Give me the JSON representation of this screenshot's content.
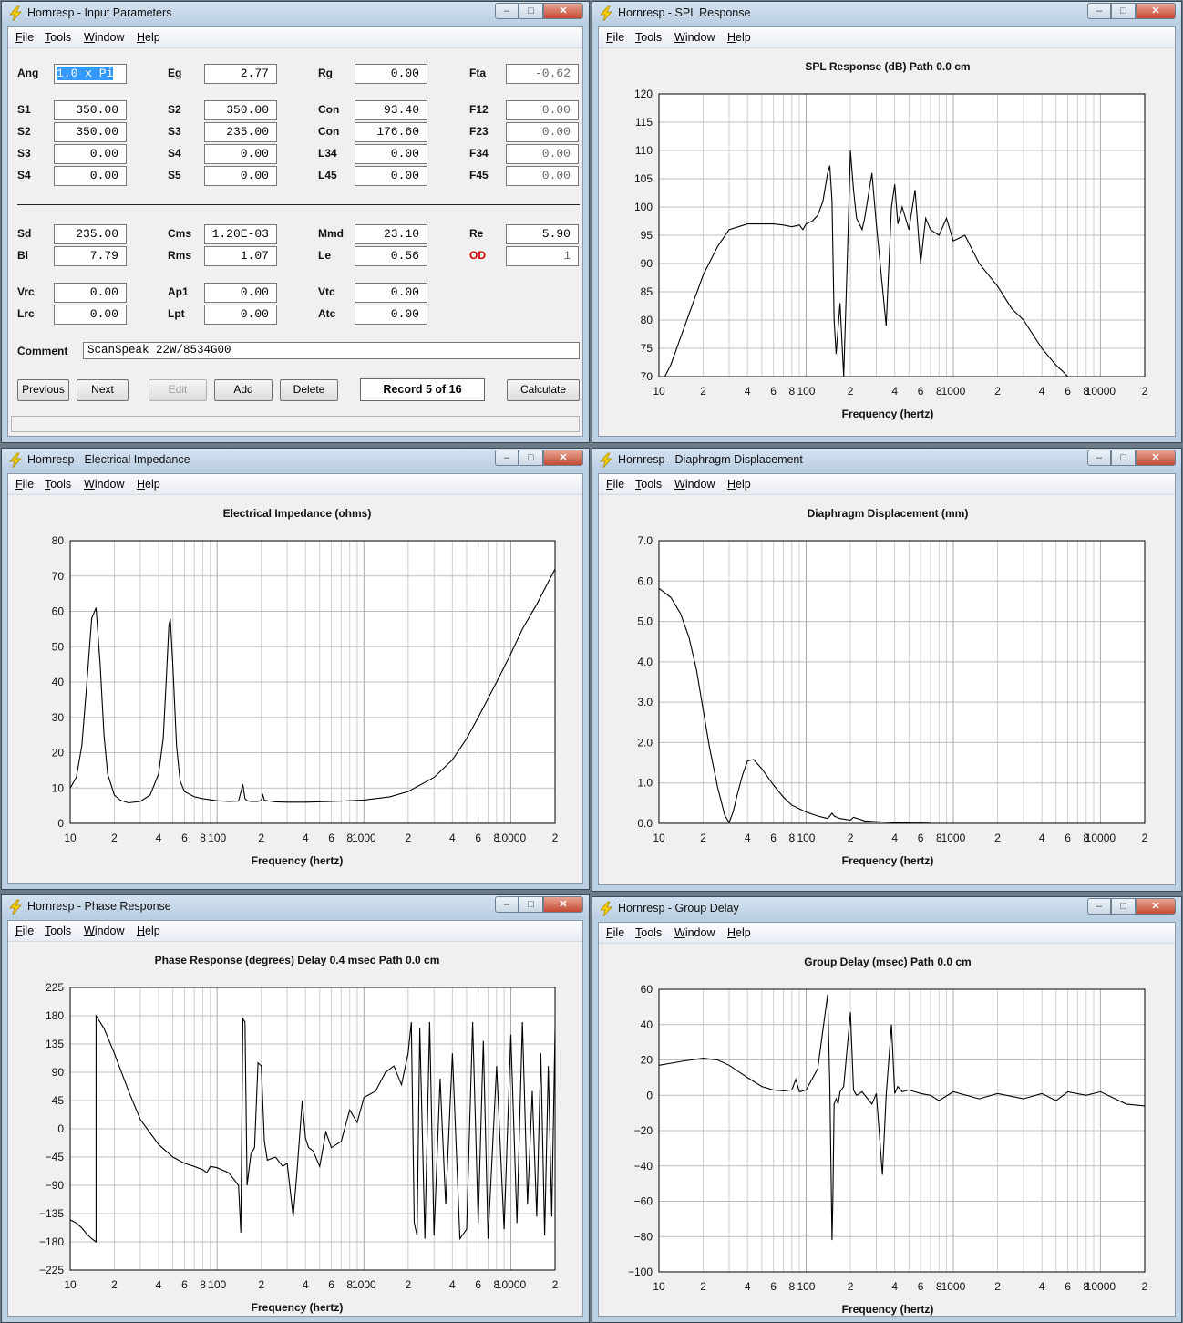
{
  "menu": [
    "File",
    "Tools",
    "Window",
    "Help"
  ],
  "window_controls": {
    "minimize": "–",
    "maximize": "□",
    "close": "✕"
  },
  "input_window": {
    "title": "Hornresp - Input Parameters",
    "rows": [
      [
        {
          "l": "Ang",
          "v": "1.0 x Pi",
          "sel": true
        },
        {
          "l": "Eg",
          "v": "2.77"
        },
        {
          "l": "Rg",
          "v": "0.00"
        },
        {
          "l": "Fta",
          "v": "-0.62",
          "ro": true
        }
      ],
      [
        {
          "l": "S1",
          "v": "350.00"
        },
        {
          "l": "S2",
          "v": "350.00"
        },
        {
          "l": "Con",
          "v": "93.40"
        },
        {
          "l": "F12",
          "v": "0.00",
          "ro": true
        }
      ],
      [
        {
          "l": "S2",
          "v": "350.00"
        },
        {
          "l": "S3",
          "v": "235.00"
        },
        {
          "l": "Con",
          "v": "176.60"
        },
        {
          "l": "F23",
          "v": "0.00",
          "ro": true
        }
      ],
      [
        {
          "l": "S3",
          "v": "0.00"
        },
        {
          "l": "S4",
          "v": "0.00"
        },
        {
          "l": "L34",
          "v": "0.00"
        },
        {
          "l": "F34",
          "v": "0.00",
          "ro": true
        }
      ],
      [
        {
          "l": "S4",
          "v": "0.00"
        },
        {
          "l": "S5",
          "v": "0.00"
        },
        {
          "l": "L45",
          "v": "0.00"
        },
        {
          "l": "F45",
          "v": "0.00",
          "ro": true
        }
      ],
      [
        {
          "l": "Sd",
          "v": "235.00"
        },
        {
          "l": "Cms",
          "v": "1.20E-03"
        },
        {
          "l": "Mmd",
          "v": "23.10"
        },
        {
          "l": "Re",
          "v": "5.90"
        }
      ],
      [
        {
          "l": "Bl",
          "v": "7.79"
        },
        {
          "l": "Rms",
          "v": "1.07"
        },
        {
          "l": "Le",
          "v": "0.56"
        },
        {
          "l": "OD",
          "v": "1",
          "ro": true,
          "red": true
        }
      ],
      [
        {
          "l": "Vrc",
          "v": "0.00"
        },
        {
          "l": "Ap1",
          "v": "0.00"
        },
        {
          "l": "Vtc",
          "v": "0.00"
        }
      ],
      [
        {
          "l": "Lrc",
          "v": "0.00"
        },
        {
          "l": "Lpt",
          "v": "0.00"
        },
        {
          "l": "Atc",
          "v": "0.00"
        }
      ]
    ],
    "comment_label": "Comment",
    "comment": "ScanSpeak 22W/8534G00",
    "buttons": {
      "previous": "Previous",
      "next": "Next",
      "edit": "Edit",
      "add": "Add",
      "delete": "Delete",
      "calculate": "Calculate"
    },
    "record": "Record 5 of 16"
  },
  "x_axis": {
    "label": "Frequency (hertz)",
    "range": [
      10,
      20000
    ],
    "ticks": [
      [
        10,
        "10"
      ],
      [
        20,
        "2"
      ],
      [
        40,
        "4"
      ],
      [
        60,
        "6"
      ],
      [
        80,
        "8"
      ],
      [
        100,
        "100"
      ],
      [
        200,
        "2"
      ],
      [
        400,
        "4"
      ],
      [
        600,
        "6"
      ],
      [
        800,
        "8"
      ],
      [
        1000,
        "1000"
      ],
      [
        2000,
        "2"
      ],
      [
        4000,
        "4"
      ],
      [
        6000,
        "6"
      ],
      [
        8000,
        "8"
      ],
      [
        10000,
        "10000"
      ],
      [
        20000,
        "2"
      ]
    ]
  },
  "chart_data": [
    {
      "id": "spl",
      "window_title": "Hornresp - SPL Response",
      "title": "SPL Response (dB)   Path 0.0 cm",
      "type": "line",
      "ylim": [
        70,
        120
      ],
      "yticks": [
        "70",
        "75",
        "80",
        "85",
        "90",
        "95",
        "100",
        "105",
        "110",
        "115",
        "120"
      ],
      "x": [
        10,
        12,
        15,
        20,
        25,
        30,
        40,
        50,
        60,
        70,
        80,
        90,
        95,
        100,
        110,
        120,
        130,
        140,
        145,
        150,
        155,
        160,
        170,
        180,
        190,
        200,
        210,
        220,
        230,
        240,
        250,
        280,
        300,
        350,
        380,
        400,
        420,
        450,
        500,
        550,
        600,
        650,
        700,
        800,
        900,
        1000,
        1200,
        1500,
        2000,
        2500,
        3000,
        4000,
        5000,
        5500,
        6000
      ],
      "y": [
        68,
        72,
        79,
        88,
        93,
        96,
        97,
        97,
        97,
        96.8,
        96.5,
        96.8,
        96,
        97,
        97.5,
        98.5,
        101,
        106,
        107.3,
        101,
        80,
        74,
        83,
        70,
        90,
        110,
        103,
        98,
        97,
        96,
        98,
        106,
        97,
        79,
        100,
        104,
        97,
        100,
        96,
        103,
        90,
        98,
        96,
        95,
        98,
        94,
        95,
        90,
        86,
        82,
        80,
        75,
        72,
        71,
        70
      ]
    },
    {
      "id": "imp",
      "window_title": "Hornresp - Electrical Impedance",
      "title": "Electrical Impedance (ohms)",
      "type": "line",
      "ylim": [
        0,
        80
      ],
      "yticks": [
        "0",
        "10",
        "20",
        "30",
        "40",
        "50",
        "60",
        "70",
        "80"
      ],
      "x": [
        10,
        11,
        12,
        13,
        14,
        15,
        16,
        17,
        18,
        20,
        22,
        25,
        30,
        35,
        40,
        43,
        45,
        47,
        48,
        50,
        53,
        56,
        60,
        70,
        80,
        100,
        120,
        140,
        150,
        155,
        160,
        170,
        190,
        200,
        205,
        210,
        250,
        300,
        400,
        600,
        800,
        1000,
        1500,
        2000,
        3000,
        4000,
        5000,
        6000,
        8000,
        10000,
        12000,
        15000,
        20000
      ],
      "y": [
        10,
        13,
        22,
        40,
        58,
        61,
        45,
        25,
        14,
        8,
        6.5,
        5.8,
        6.2,
        8,
        14,
        24,
        40,
        56,
        58,
        45,
        22,
        12,
        9,
        7.5,
        7,
        6.4,
        6.2,
        6.3,
        11,
        7,
        6.4,
        6.2,
        6.2,
        6.5,
        8,
        6.5,
        6.1,
        6,
        6,
        6.2,
        6.4,
        6.6,
        7.5,
        9,
        13,
        18,
        24,
        30,
        40,
        48,
        55,
        62,
        72
      ]
    },
    {
      "id": "disp",
      "window_title": "Hornresp - Diaphragm Displacement",
      "title": "Diaphragm Displacement (mm)",
      "type": "line",
      "ylim": [
        0,
        7
      ],
      "yticks": [
        "0.0",
        "1.0",
        "2.0",
        "3.0",
        "4.0",
        "5.0",
        "6.0",
        "7.0"
      ],
      "x": [
        10,
        12,
        14,
        16,
        18,
        20,
        22,
        25,
        28,
        30,
        32,
        34,
        37,
        40,
        44,
        50,
        60,
        70,
        80,
        100,
        120,
        140,
        150,
        155,
        170,
        200,
        210,
        250,
        300,
        400,
        500,
        700
      ],
      "y": [
        5.82,
        5.6,
        5.2,
        4.6,
        3.8,
        2.8,
        1.9,
        0.9,
        0.2,
        0.02,
        0.3,
        0.7,
        1.2,
        1.55,
        1.58,
        1.35,
        0.95,
        0.65,
        0.45,
        0.28,
        0.18,
        0.12,
        0.25,
        0.18,
        0.12,
        0.08,
        0.15,
        0.06,
        0.04,
        0.02,
        0.01,
        0.005
      ]
    },
    {
      "id": "phase",
      "window_title": "Hornresp - Phase Response",
      "title": "Phase Response (degrees)    Delay 0.4 msec    Path 0.0 cm",
      "type": "line",
      "ylim": [
        -225,
        225
      ],
      "yticks": [
        "−225",
        "−180",
        "−135",
        "−90",
        "−45",
        "0",
        "45",
        "90",
        "135",
        "180",
        "225"
      ],
      "x": [
        10,
        11,
        12,
        13,
        14,
        15,
        15,
        17,
        20,
        25,
        30,
        40,
        50,
        60,
        70,
        80,
        85,
        90,
        100,
        120,
        140,
        145,
        150,
        155,
        160,
        170,
        180,
        190,
        200,
        210,
        220,
        250,
        280,
        300,
        330,
        350,
        380,
        400,
        420,
        450,
        500,
        550,
        600,
        700,
        800,
        900,
        1000,
        1200,
        1400,
        1600,
        1800,
        2000,
        2100,
        2200,
        2300,
        2400,
        2600,
        2800,
        3000,
        3300,
        3600,
        4000,
        4500,
        5000,
        5500,
        6000,
        6500,
        7000,
        8000,
        9000,
        10000,
        11000,
        12000,
        13000,
        14000,
        15000,
        16000,
        17000,
        18000,
        19000,
        20000
      ],
      "y": [
        -145,
        -150,
        -158,
        -168,
        -175,
        -180,
        180,
        160,
        120,
        60,
        15,
        -25,
        -45,
        -55,
        -60,
        -65,
        -70,
        -60,
        -62,
        -70,
        -90,
        -165,
        175,
        170,
        -90,
        -40,
        -30,
        105,
        100,
        -20,
        -50,
        -45,
        -60,
        -55,
        -140,
        -70,
        45,
        -15,
        -30,
        -35,
        -60,
        -5,
        -30,
        -20,
        30,
        10,
        50,
        60,
        90,
        100,
        70,
        120,
        170,
        -150,
        -170,
        160,
        -175,
        170,
        -170,
        80,
        -120,
        120,
        -175,
        -160,
        170,
        -150,
        140,
        -175,
        100,
        -160,
        150,
        -150,
        170,
        -120,
        60,
        -140,
        120,
        -170,
        100,
        -140,
        160
      ]
    },
    {
      "id": "gd",
      "window_title": "Hornresp - Group Delay",
      "title": "Group Delay (msec)   Path 0.0 cm",
      "type": "line",
      "ylim": [
        -100,
        60
      ],
      "yticks": [
        "−100",
        "−80",
        "−60",
        "−40",
        "−20",
        "0",
        "20",
        "40",
        "60"
      ],
      "x": [
        10,
        15,
        20,
        25,
        30,
        40,
        50,
        60,
        70,
        80,
        85,
        90,
        100,
        120,
        140,
        145,
        150,
        152,
        155,
        160,
        165,
        170,
        180,
        200,
        210,
        220,
        240,
        280,
        300,
        330,
        350,
        380,
        400,
        420,
        450,
        500,
        600,
        700,
        800,
        1000,
        1500,
        2000,
        3000,
        4000,
        5000,
        6000,
        8000,
        10000,
        15000,
        20000
      ],
      "y": [
        17,
        19.5,
        21,
        20,
        17,
        10,
        5,
        3,
        2.5,
        3,
        9,
        2,
        3,
        15,
        57,
        5,
        -82,
        -60,
        -5,
        -2,
        -5,
        2,
        5,
        47,
        3,
        0,
        2,
        -5,
        1,
        -45,
        0,
        40,
        1,
        5,
        2,
        3,
        1,
        0,
        -3,
        2,
        -2,
        1,
        -2,
        1,
        -3,
        2,
        0,
        2,
        -5,
        -6
      ]
    }
  ]
}
